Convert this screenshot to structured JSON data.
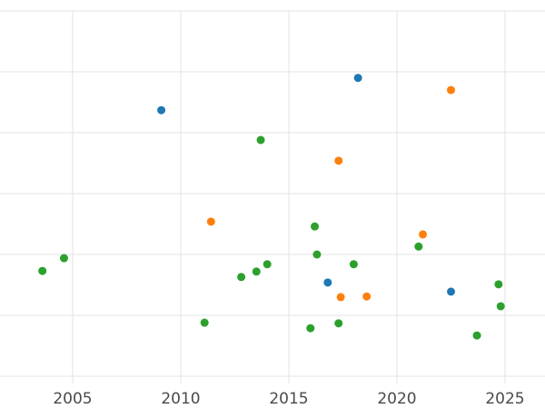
{
  "chart_data": {
    "type": "scatter",
    "title": "",
    "xlabel": "",
    "ylabel": "",
    "x_ticks": [
      2005,
      2010,
      2015,
      2020,
      2025
    ],
    "x_tick_labels": [
      "2005",
      "2010",
      "2015",
      "2020",
      "2025"
    ],
    "xlim": [
      2001.6,
      2026.9
    ],
    "ylim": [
      -0.5,
      6.2
    ],
    "y_gridlines": [
      0,
      1,
      2,
      3,
      4,
      5,
      6
    ],
    "grid": true,
    "legend": "none",
    "background_color": "#ffffff",
    "gridline_color": "#e3e3e3",
    "tick_label_color": "#4a4a4a",
    "marker_radius": 4.5,
    "series": [
      {
        "name": "blue",
        "color": "#1f77b4",
        "points": [
          [
            2009.1,
            4.37
          ],
          [
            2018.2,
            4.9
          ],
          [
            2016.8,
            1.54
          ],
          [
            2022.5,
            1.39
          ]
        ]
      },
      {
        "name": "orange",
        "color": "#ff7f0e",
        "points": [
          [
            2011.4,
            2.54
          ],
          [
            2017.3,
            3.54
          ],
          [
            2022.5,
            4.7
          ],
          [
            2021.2,
            2.33
          ],
          [
            2017.4,
            1.3
          ],
          [
            2018.6,
            1.31
          ]
        ]
      },
      {
        "name": "green",
        "color": "#2ca02c",
        "points": [
          [
            2003.6,
            1.73
          ],
          [
            2004.6,
            1.94
          ],
          [
            2011.1,
            0.88
          ],
          [
            2012.8,
            1.63
          ],
          [
            2013.5,
            1.72
          ],
          [
            2014.0,
            1.84
          ],
          [
            2013.7,
            3.88
          ],
          [
            2016.2,
            2.46
          ],
          [
            2016.3,
            2.0
          ],
          [
            2016.0,
            0.79
          ],
          [
            2017.3,
            0.87
          ],
          [
            2018.0,
            1.84
          ],
          [
            2021.0,
            2.13
          ],
          [
            2024.7,
            1.51
          ],
          [
            2024.8,
            1.15
          ],
          [
            2023.7,
            0.67
          ]
        ]
      }
    ]
  }
}
